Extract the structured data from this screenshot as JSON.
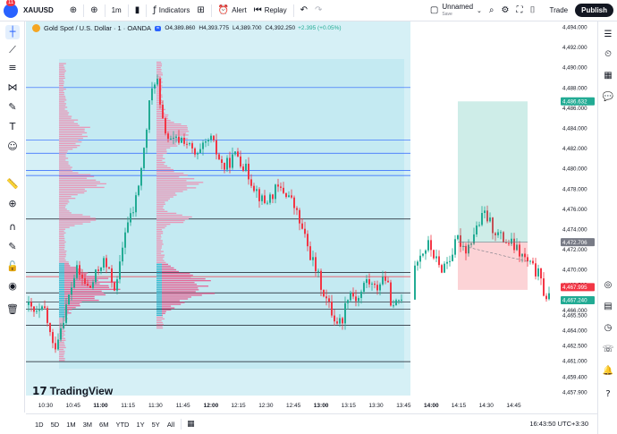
{
  "topbar": {
    "notif_count": "11",
    "symbol": "XAUUSD",
    "interval": "1m",
    "indicators_label": "Indicators",
    "alert_label": "Alert",
    "replay_label": "Replay",
    "layout_name": "Unnamed",
    "layout_status": "Save",
    "trade_label": "Trade",
    "publish_label": "Publish"
  },
  "legend": {
    "title": "Gold Spot / U.S. Dollar · 1 · OANDA",
    "open": "O4,389.860",
    "high": "H4,393.775",
    "low": "L4,389.700",
    "close": "C4,392.250",
    "change": "+2.395 (+0.05%)"
  },
  "price_axis": {
    "ticks": [
      "4,494.000",
      "4,492.000",
      "4,490.000",
      "4,488.000",
      "4,486.000",
      "4,484.000",
      "4,482.000",
      "4,480.000",
      "4,478.000",
      "4,476.000",
      "4,474.000",
      "4,472.000",
      "4,470.000",
      "4,468.500",
      "4,466.000",
      "4,465.500",
      "4,464.000",
      "4,462.500",
      "4,461.000",
      "4,459.400",
      "4,457.900"
    ],
    "labels": [
      {
        "text": "4,486.632",
        "color": "#22ab94"
      },
      {
        "text": "4,472.706",
        "color": "#787b86"
      },
      {
        "text": "4,467.995",
        "color": "#f23645"
      },
      {
        "text": "4,467.240",
        "color": "#22ab94"
      }
    ]
  },
  "time_axis": {
    "ticks": [
      "10:15",
      "10:30",
      "10:45",
      "11:00",
      "11:15",
      "11:30",
      "11:45",
      "12:00",
      "12:15",
      "12:30",
      "12:45",
      "13:00",
      "13:15",
      "13:30",
      "13:45",
      "14:00",
      "14:15",
      "14:30",
      "14:45"
    ],
    "bold": [
      "11:00",
      "12:00",
      "13:00",
      "14:00"
    ]
  },
  "watermark": "TradingView",
  "bottombar": {
    "ranges": [
      "1D",
      "5D",
      "1M",
      "3M",
      "6M",
      "YTD",
      "1Y",
      "5Y",
      "All"
    ],
    "clock": "16:43:50 UTC+3:30"
  },
  "icons": {
    "left": [
      "crosshair-icon",
      "trendline-icon",
      "fib-icon",
      "pattern-icon",
      "brush-icon",
      "text-icon",
      "emoji-icon",
      "ruler-icon",
      "zoom-icon",
      "magnet-icon",
      "lock-drawing-icon",
      "lock-icon",
      "eye-icon",
      "trash-icon"
    ],
    "right": [
      "watchlist-icon",
      "alerts-clock-icon",
      "ideas-icon",
      "news-icon",
      "chat-icon",
      "calendar-icon",
      "notifications-icon",
      "help-icon"
    ]
  }
}
